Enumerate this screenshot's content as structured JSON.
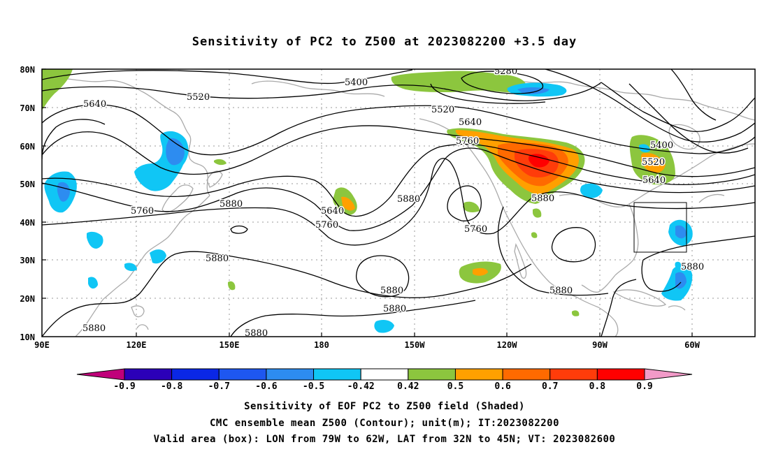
{
  "title": "Sensitivity of PC2 to Z500 at 2023082200 +3.5 day",
  "map": {
    "lat_labels": [
      "80N",
      "70N",
      "60N",
      "50N",
      "40N",
      "30N",
      "20N",
      "10N"
    ],
    "lon_labels": [
      "90E",
      "120E",
      "150E",
      "180",
      "150W",
      "120W",
      "90W",
      "60W"
    ],
    "contour_labels": [
      "5280",
      "5400",
      "5520",
      "5640",
      "5640",
      "5520",
      "5760",
      "5640",
      "5760",
      "5880",
      "5760",
      "5880",
      "5760",
      "5880",
      "5880",
      "5880",
      "5880",
      "5880",
      "5880",
      "5880",
      "5400",
      "5520",
      "5640",
      "5880"
    ],
    "valid_box": {
      "lon": [
        "79W",
        "62W"
      ],
      "lat": [
        "32N",
        "45N"
      ]
    }
  },
  "colorbar": {
    "labels": [
      "-0.9",
      "-0.8",
      "-0.7",
      "-0.6",
      "-0.5",
      "-0.42",
      "0.42",
      "0.5",
      "0.6",
      "0.7",
      "0.8",
      "0.9"
    ],
    "colors": [
      "#2b00b8",
      "#0a27e6",
      "#1e57f0",
      "#2d8cf0",
      "#10c6f5",
      "#ffffff",
      "#8cc63e",
      "#ffa000",
      "#ff6a00",
      "#ff3c0a",
      "#ff0000"
    ],
    "end_low_color": "#c0007a",
    "end_high_color": "#f29ac8"
  },
  "caption": {
    "line1": "Sensitivity of EOF PC2 to Z500 field (Shaded)",
    "line2": "CMC ensemble mean Z500 (Contour); unit(m); IT:2023082200",
    "line3": "Valid area (box): LON from 79W to 62W, LAT from 32N to 45N; VT: 2023082600"
  }
}
